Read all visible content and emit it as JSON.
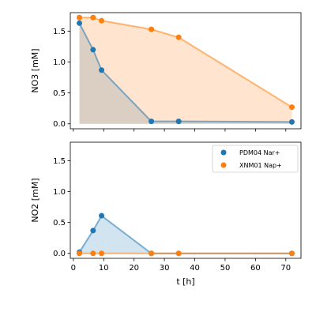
{
  "chart_data": [
    {
      "type": "line",
      "area_fill": true,
      "ylabel": "NO3 [mM]",
      "xlabel": "",
      "xlim": [
        -1,
        75
      ],
      "ylim": [
        -0.08,
        1.8
      ],
      "yticks": [
        0.0,
        0.5,
        1.0,
        1.5
      ],
      "xticks": [
        0,
        10,
        20,
        30,
        40,
        50,
        60,
        70
      ],
      "show_xticklabels": false,
      "series": [
        {
          "name": "PDM04 Nar+",
          "color": "#1f77b4",
          "x": [
            2,
            6.5,
            9.3,
            25.7,
            34.7,
            72
          ],
          "y": [
            1.63,
            1.2,
            0.87,
            0.04,
            0.04,
            0.03
          ]
        },
        {
          "name": "XNM01 Nap+",
          "color": "#ff7f0e",
          "x": [
            2,
            6.5,
            9.3,
            25.7,
            34.7,
            72
          ],
          "y": [
            1.72,
            1.72,
            1.67,
            1.53,
            1.4,
            0.27
          ]
        }
      ]
    },
    {
      "type": "line",
      "area_fill": true,
      "ylabel": "NO2 [mM]",
      "xlabel": "t [h]",
      "xlim": [
        -1,
        75
      ],
      "ylim": [
        -0.08,
        1.8
      ],
      "yticks": [
        0.0,
        0.5,
        1.0,
        1.5
      ],
      "xticks": [
        0,
        10,
        20,
        30,
        40,
        50,
        60,
        70
      ],
      "show_xticklabels": true,
      "legend": "top-right",
      "series": [
        {
          "name": "PDM04 Nar+",
          "color": "#1f77b4",
          "x": [
            2,
            6.5,
            9.3,
            25.7,
            34.7,
            72
          ],
          "y": [
            0.02,
            0.37,
            0.61,
            0.0,
            0.0,
            0.0
          ]
        },
        {
          "name": "XNM01 Nap+",
          "color": "#ff7f0e",
          "x": [
            2,
            6.5,
            9.3,
            25.7,
            34.7,
            72
          ],
          "y": [
            0.0,
            0.0,
            0.0,
            0.0,
            0.0,
            0.0
          ]
        }
      ]
    }
  ]
}
